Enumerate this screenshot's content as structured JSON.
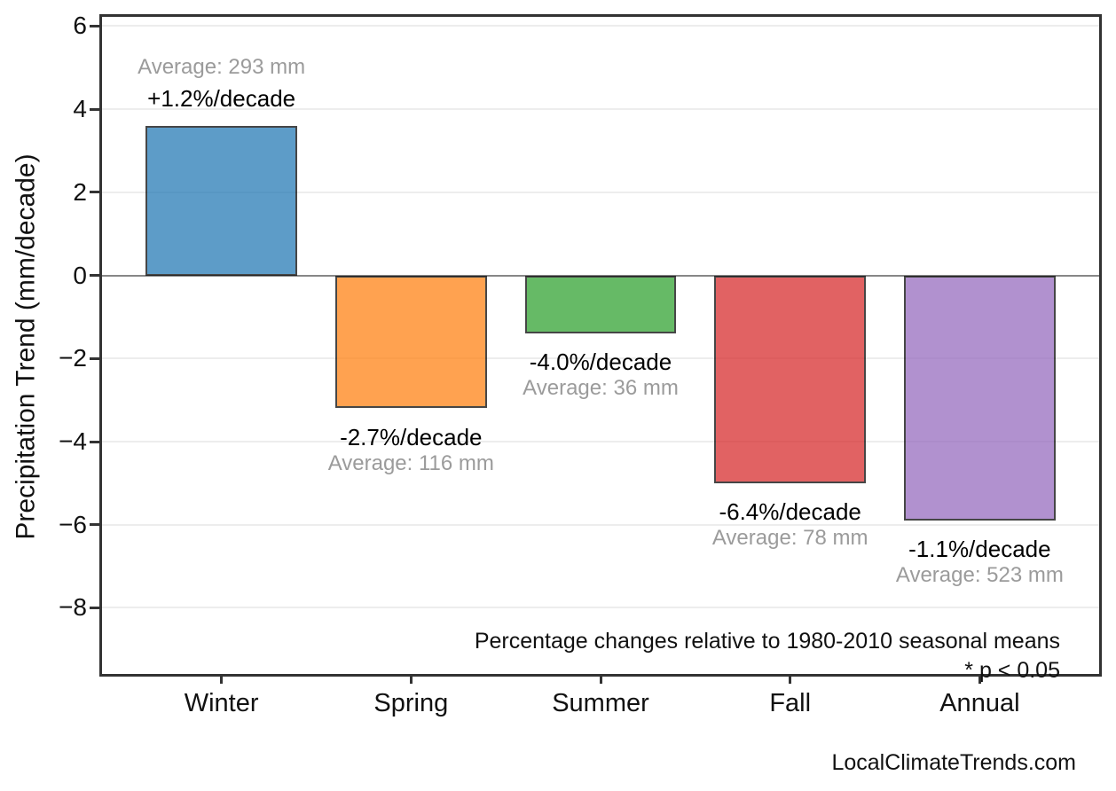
{
  "chart_data": {
    "type": "bar",
    "title": "",
    "xlabel": "",
    "ylabel": "Precipitation Trend (mm/decade)",
    "categories": [
      "Winter",
      "Spring",
      "Summer",
      "Fall",
      "Annual"
    ],
    "values": [
      3.6,
      -3.2,
      -1.4,
      -5.0,
      -5.9
    ],
    "bar_colors": [
      "#1f77b4",
      "#ff7f0e",
      "#2ca02c",
      "#d62728",
      "#9467bd"
    ],
    "bar_colors_rendered": [
      "#619EC9",
      "#FFA65B",
      "#63BE69",
      "#E0696B",
      "#B394CF"
    ],
    "bar_edge_color": "#000000",
    "bar_width_units": 0.8,
    "annotations": [
      {
        "pct": "+1.2%/decade",
        "avg": "Average: 293 mm"
      },
      {
        "pct": "-2.7%/decade",
        "avg": "Average: 116 mm"
      },
      {
        "pct": "-4.0%/decade",
        "avg": "Average: 36 mm"
      },
      {
        "pct": "-6.4%/decade",
        "avg": "Average: 78 mm"
      },
      {
        "pct": "-1.1%/decade",
        "avg": "Average: 523 mm"
      }
    ],
    "ytick_values": [
      6,
      4,
      2,
      0,
      -2,
      -4,
      -6,
      -8
    ],
    "ytick_labels": [
      "6",
      "4",
      "2",
      "0",
      "−2",
      "−4",
      "−6",
      "−8"
    ],
    "ylim": [
      -9.59,
      6.22
    ],
    "xlim": [
      -0.63,
      4.63
    ],
    "grid": "horizontal",
    "grid_color": "#ededed",
    "zero_line_color": "#878787",
    "pct_label_color": "#000000",
    "avg_label_color": "#9b9b9b",
    "notes": [
      "Percentage changes relative to 1980-2010 seasonal means",
      "* p < 0.05"
    ]
  },
  "footer": {
    "watermark": "LocalClimateTrends.com"
  }
}
